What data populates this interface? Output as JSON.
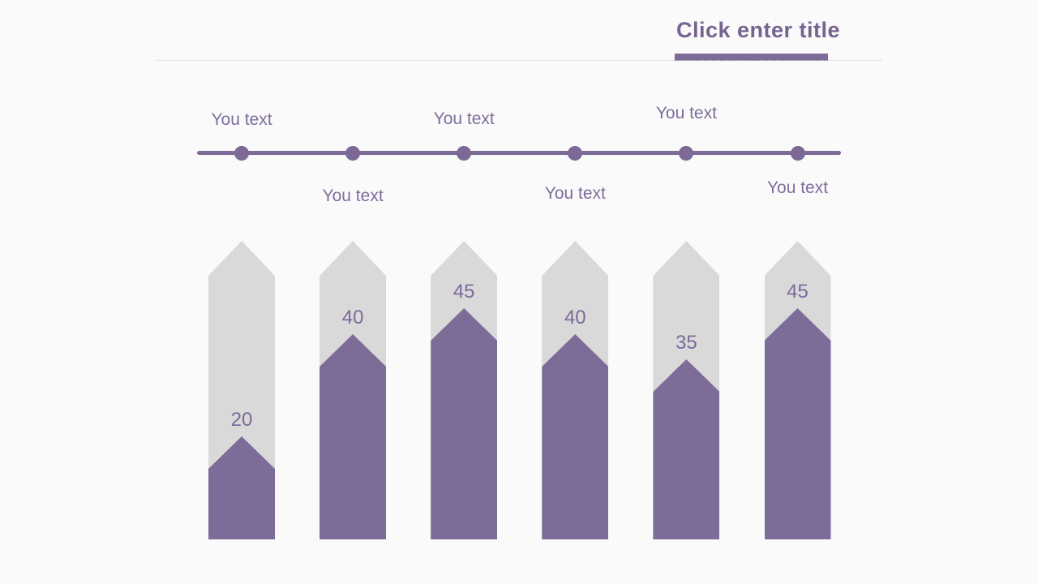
{
  "slide": {
    "background_color": "#fafafa",
    "accent_color": "#7d6c97",
    "track_color": "#d9d9d9"
  },
  "header": {
    "title": "Click enter title"
  },
  "timeline": {
    "items": [
      {
        "label": "You text",
        "position": "above"
      },
      {
        "label": "You text",
        "position": "below"
      },
      {
        "label": "You text",
        "position": "above"
      },
      {
        "label": "You text",
        "position": "below"
      },
      {
        "label": "You text",
        "position": "above"
      },
      {
        "label": "You text",
        "position": "below"
      }
    ]
  },
  "chart_data": {
    "type": "bar",
    "bar_style": "upward-arrow-column",
    "categories": [
      "You text",
      "You text",
      "You text",
      "You text",
      "You text",
      "You text"
    ],
    "values": [
      20,
      40,
      45,
      40,
      35,
      45
    ],
    "title": "",
    "xlabel": "",
    "ylabel": "",
    "ylim": [
      0,
      50
    ],
    "grid": false,
    "legend": false,
    "fill_color": "#7d6c97",
    "track_color": "#d9d9d9",
    "value_label_color": "#7c6a9a"
  }
}
